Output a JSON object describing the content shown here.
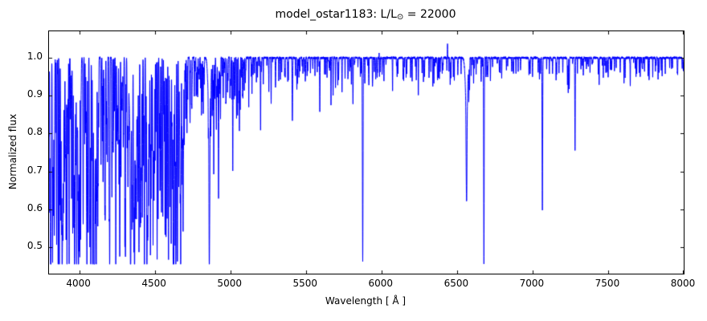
{
  "chart_data": {
    "type": "line",
    "title_prefix": "model_ostar1183: L/L",
    "title_sun": "⊙",
    "title_suffix": " = 22000",
    "xlabel": "Wavelength [ Å ]",
    "ylabel": "Normalized flux",
    "xlim": [
      3800,
      8000
    ],
    "ylim": [
      0.43,
      1.07
    ],
    "line_color": "#0000ff",
    "axis_color": "#000000",
    "background": "#ffffff",
    "continuum": 1.0,
    "flux_floor": 0.455,
    "x_ticks": {
      "values": [
        4000,
        4500,
        5000,
        5500,
        6000,
        6500,
        7000,
        7500,
        8000
      ],
      "labels": [
        "4000",
        "4500",
        "5000",
        "5500",
        "6000",
        "6500",
        "7000",
        "7500",
        "8000"
      ]
    },
    "y_ticks": {
      "values": [
        0.5,
        0.6,
        0.7,
        0.8,
        0.9,
        1.0
      ],
      "labels": [
        "0.5",
        "0.6",
        "0.7",
        "0.8",
        "0.9",
        "1.0"
      ]
    },
    "absorption_lines": [
      [
        3806,
        0.75,
        1.0
      ],
      [
        3815,
        0.6,
        1.3
      ],
      [
        3827,
        0.72,
        1.1
      ],
      [
        3835,
        0.53,
        1.8
      ],
      [
        3844,
        0.8,
        1.0
      ],
      [
        3851,
        0.74,
        1.0
      ],
      [
        3860,
        0.68,
        1.1
      ],
      [
        3868,
        0.6,
        1.2
      ],
      [
        3878,
        0.7,
        1.0
      ],
      [
        3889,
        0.52,
        2.0
      ],
      [
        3903,
        0.78,
        1.0
      ],
      [
        3913,
        0.7,
        1.0
      ],
      [
        3920,
        0.66,
        1.0
      ],
      [
        3927,
        0.75,
        1.0
      ],
      [
        3933,
        0.62,
        1.2
      ],
      [
        3942,
        0.84,
        1.0
      ],
      [
        3949,
        0.72,
        1.0
      ],
      [
        3957,
        0.8,
        1.0
      ],
      [
        3964,
        0.68,
        1.0
      ],
      [
        3970,
        0.82,
        8.0
      ],
      [
        3970,
        0.52,
        2.2
      ],
      [
        3983,
        0.85,
        1.0
      ],
      [
        3995,
        0.68,
        1.0
      ],
      [
        4009,
        0.77,
        1.2
      ],
      [
        4026,
        0.56,
        1.6
      ],
      [
        4035,
        0.85,
        1.0
      ],
      [
        4041,
        0.8,
        1.0
      ],
      [
        4045,
        0.83,
        1.0
      ],
      [
        4058,
        0.86,
        1.0
      ],
      [
        4070,
        0.6,
        1.2
      ],
      [
        4076,
        0.58,
        1.2
      ],
      [
        4083,
        0.75,
        1.0
      ],
      [
        4089,
        0.55,
        1.2
      ],
      [
        4097,
        0.62,
        1.2
      ],
      [
        4101,
        0.8,
        9.0
      ],
      [
        4101,
        0.48,
        2.4
      ],
      [
        4110,
        0.8,
        1.0
      ],
      [
        4116,
        0.72,
        1.0
      ],
      [
        4121,
        0.7,
        1.2
      ],
      [
        4129,
        0.82,
        1.0
      ],
      [
        4144,
        0.72,
        1.4
      ],
      [
        4153,
        0.78,
        1.0
      ],
      [
        4163,
        0.85,
        1.0
      ],
      [
        4171,
        0.87,
        1.0
      ],
      [
        4179,
        0.83,
        1.0
      ],
      [
        4187,
        0.8,
        1.0
      ],
      [
        4200,
        0.78,
        1.4
      ],
      [
        4215,
        0.85,
        1.0
      ],
      [
        4227,
        0.82,
        1.0
      ],
      [
        4233,
        0.86,
        1.0
      ],
      [
        4242,
        0.84,
        1.0
      ],
      [
        4253,
        0.82,
        1.0
      ],
      [
        4267,
        0.72,
        1.2
      ],
      [
        4276,
        0.85,
        1.0
      ],
      [
        4284,
        0.87,
        1.0
      ],
      [
        4294,
        0.83,
        1.0
      ],
      [
        4303,
        0.8,
        1.0
      ],
      [
        4310,
        0.86,
        1.0
      ],
      [
        4317,
        0.78,
        1.0
      ],
      [
        4326,
        0.84,
        1.0
      ],
      [
        4340,
        0.8,
        9.0
      ],
      [
        4340,
        0.5,
        2.4
      ],
      [
        4349,
        0.7,
        1.2
      ],
      [
        4359,
        0.85,
        1.0
      ],
      [
        4367,
        0.75,
        1.2
      ],
      [
        4379,
        0.68,
        1.2
      ],
      [
        4388,
        0.62,
        1.5
      ],
      [
        4395,
        0.78,
        1.0
      ],
      [
        4404,
        0.75,
        1.2
      ],
      [
        4411,
        0.85,
        1.0
      ],
      [
        4417,
        0.72,
        1.2
      ],
      [
        4432,
        0.84,
        1.0
      ],
      [
        4440,
        0.86,
        1.0
      ],
      [
        4447,
        0.76,
        1.2
      ],
      [
        4455,
        0.83,
        1.0
      ],
      [
        4462,
        0.85,
        1.0
      ],
      [
        4471,
        0.54,
        1.8
      ],
      [
        4481,
        0.76,
        1.2
      ],
      [
        4489,
        0.84,
        1.0
      ],
      [
        4498,
        0.86,
        1.0
      ],
      [
        4508,
        0.82,
        1.0
      ],
      [
        4515,
        0.78,
        1.2
      ],
      [
        4522,
        0.84,
        1.0
      ],
      [
        4530,
        0.8,
        1.2
      ],
      [
        4542,
        0.8,
        1.4
      ],
      [
        4553,
        0.58,
        1.4
      ],
      [
        4560,
        0.85,
        1.0
      ],
      [
        4568,
        0.64,
        1.3
      ],
      [
        4575,
        0.7,
        1.2
      ],
      [
        4583,
        0.8,
        1.2
      ],
      [
        4591,
        0.76,
        1.2
      ],
      [
        4601,
        0.8,
        1.2
      ],
      [
        4607,
        0.82,
        1.0
      ],
      [
        4613,
        0.84,
        1.0
      ],
      [
        4621,
        0.8,
        1.0
      ],
      [
        4630,
        0.72,
        1.2
      ],
      [
        4640,
        0.68,
        1.4
      ],
      [
        4650,
        0.65,
        1.4
      ],
      [
        4658,
        0.78,
        1.2
      ],
      [
        4665,
        0.85,
        1.0
      ],
      [
        4673,
        0.87,
        1.0
      ],
      [
        4686,
        0.76,
        1.6
      ],
      [
        4697,
        0.88,
        1.0
      ],
      [
        4705,
        0.84,
        1.0
      ],
      [
        4713,
        0.8,
        1.3
      ],
      [
        4731,
        0.9,
        1.0
      ],
      [
        4745,
        0.92,
        1.0
      ],
      [
        4762,
        0.9,
        1.0
      ],
      [
        4780,
        0.91,
        1.0
      ],
      [
        4803,
        0.92,
        1.0
      ],
      [
        4815,
        0.93,
        1.0
      ],
      [
        4861,
        0.84,
        8.0
      ],
      [
        4861,
        0.55,
        2.4
      ],
      [
        4880,
        0.93,
        1.0
      ],
      [
        4890,
        0.94,
        1.0
      ],
      [
        4907,
        0.95,
        1.0
      ],
      [
        4922,
        0.63,
        1.6
      ],
      [
        4931,
        0.92,
        1.0
      ],
      [
        4944,
        0.95,
        1.0
      ],
      [
        4959,
        0.96,
        1.0
      ],
      [
        4980,
        0.95,
        1.0
      ],
      [
        5016,
        0.7,
        1.5
      ],
      [
        5032,
        0.9,
        1.2
      ],
      [
        5041,
        0.84,
        1.2
      ],
      [
        5048,
        0.86,
        1.2
      ],
      [
        5056,
        0.88,
        1.2
      ],
      [
        5073,
        0.95,
        1.0
      ],
      [
        5100,
        0.96,
        1.0
      ],
      [
        5122,
        0.94,
        1.0
      ],
      [
        5143,
        0.95,
        1.0
      ],
      [
        5160,
        0.96,
        1.0
      ],
      [
        5180,
        0.95,
        1.0
      ],
      [
        5200,
        0.81,
        1.3
      ],
      [
        5218,
        0.93,
        1.0
      ],
      [
        5270,
        0.88,
        1.2
      ],
      [
        5298,
        0.95,
        1.0
      ],
      [
        5320,
        0.94,
        1.0
      ],
      [
        5340,
        0.96,
        1.0
      ],
      [
        5363,
        0.95,
        1.0
      ],
      [
        5380,
        0.94,
        1.0
      ],
      [
        5411,
        0.86,
        1.5
      ],
      [
        5440,
        0.96,
        1.0
      ],
      [
        5454,
        0.95,
        1.0
      ],
      [
        5480,
        0.96,
        1.0
      ],
      [
        5508,
        0.95,
        1.0
      ],
      [
        5530,
        0.96,
        1.0
      ],
      [
        5560,
        0.95,
        1.0
      ],
      [
        5575,
        0.96,
        1.0
      ],
      [
        5592,
        0.89,
        1.3
      ],
      [
        5640,
        0.95,
        1.0
      ],
      [
        5666,
        0.92,
        1.2
      ],
      [
        5680,
        0.9,
        1.2
      ],
      [
        5696,
        0.92,
        1.2
      ],
      [
        5711,
        0.93,
        1.0
      ],
      [
        5739,
        0.91,
        1.2
      ],
      [
        5780,
        0.96,
        1.0
      ],
      [
        5801,
        0.93,
        1.2
      ],
      [
        5812,
        0.94,
        1.2
      ],
      [
        5876,
        0.475,
        1.8
      ],
      [
        5890,
        0.93,
        1.0
      ],
      [
        5940,
        0.95,
        1.0
      ],
      [
        5953,
        0.96,
        1.0
      ],
      [
        6004,
        0.96,
        1.0
      ],
      [
        6074,
        0.95,
        1.0
      ],
      [
        6147,
        0.94,
        1.0
      ],
      [
        6163,
        0.95,
        1.0
      ],
      [
        6203,
        0.94,
        1.0
      ],
      [
        6244,
        0.95,
        1.0
      ],
      [
        6285,
        0.96,
        1.0
      ],
      [
        6340,
        0.95,
        1.0
      ],
      [
        6347,
        0.93,
        1.2
      ],
      [
        6371,
        0.94,
        1.2
      ],
      [
        6402,
        0.96,
        1.0
      ],
      [
        6456,
        0.95,
        1.0
      ],
      [
        6482,
        0.94,
        1.0
      ],
      [
        6527,
        0.96,
        1.0
      ],
      [
        6563,
        0.88,
        8.0
      ],
      [
        6563,
        0.71,
        2.6
      ],
      [
        6578,
        0.9,
        1.2
      ],
      [
        6583,
        0.92,
        1.2
      ],
      [
        6610,
        0.96,
        1.0
      ],
      [
        6678,
        0.48,
        1.8
      ],
      [
        6721,
        0.94,
        1.2
      ],
      [
        6780,
        0.96,
        1.0
      ],
      [
        6827,
        0.97,
        1.0
      ],
      [
        6890,
        0.96,
        1.0
      ],
      [
        6920,
        0.97,
        1.0
      ],
      [
        6980,
        0.97,
        1.0
      ],
      [
        7037,
        0.96,
        1.0
      ],
      [
        7065,
        0.6,
        1.8
      ],
      [
        7111,
        0.96,
        1.0
      ],
      [
        7155,
        0.97,
        1.0
      ],
      [
        7200,
        0.96,
        1.0
      ],
      [
        7231,
        0.93,
        1.2
      ],
      [
        7236,
        0.92,
        1.2
      ],
      [
        7281,
        0.755,
        1.6
      ],
      [
        7320,
        0.97,
        1.0
      ],
      [
        7380,
        0.96,
        1.0
      ],
      [
        7440,
        0.97,
        1.0
      ],
      [
        7468,
        0.95,
        1.2
      ],
      [
        7520,
        0.97,
        1.0
      ],
      [
        7580,
        0.96,
        1.0
      ],
      [
        7612,
        0.97,
        1.0
      ],
      [
        7680,
        0.97,
        1.0
      ],
      [
        7712,
        0.96,
        1.0
      ],
      [
        7771,
        0.94,
        1.4
      ],
      [
        7830,
        0.97,
        1.0
      ],
      [
        7878,
        0.96,
        1.0
      ],
      [
        7920,
        0.97,
        1.0
      ],
      [
        7960,
        0.96,
        1.0
      ],
      [
        7990,
        0.97,
        1.0
      ]
    ],
    "emission_lines": [
      [
        5985,
        1.015,
        0.8
      ],
      [
        6075,
        1.02,
        0.8
      ],
      [
        6437,
        1.04,
        0.9
      ]
    ],
    "microline_forest": {
      "seed": 1183,
      "regions": [
        {
          "from": 3800,
          "to": 4700,
          "count": 240,
          "depth": [
            0.03,
            0.4
          ],
          "sigma": [
            0.7,
            1.6
          ]
        },
        {
          "from": 4700,
          "to": 5100,
          "count": 70,
          "depth": [
            0.02,
            0.12
          ],
          "sigma": [
            0.7,
            1.4
          ]
        },
        {
          "from": 5100,
          "to": 6500,
          "count": 110,
          "depth": [
            0.01,
            0.06
          ],
          "sigma": [
            0.7,
            1.3
          ]
        },
        {
          "from": 6500,
          "to": 8000,
          "count": 100,
          "depth": [
            0.01,
            0.05
          ],
          "sigma": [
            0.7,
            1.3
          ]
        }
      ]
    },
    "noise": {
      "seed": 77,
      "amplitude": 0.003
    }
  }
}
